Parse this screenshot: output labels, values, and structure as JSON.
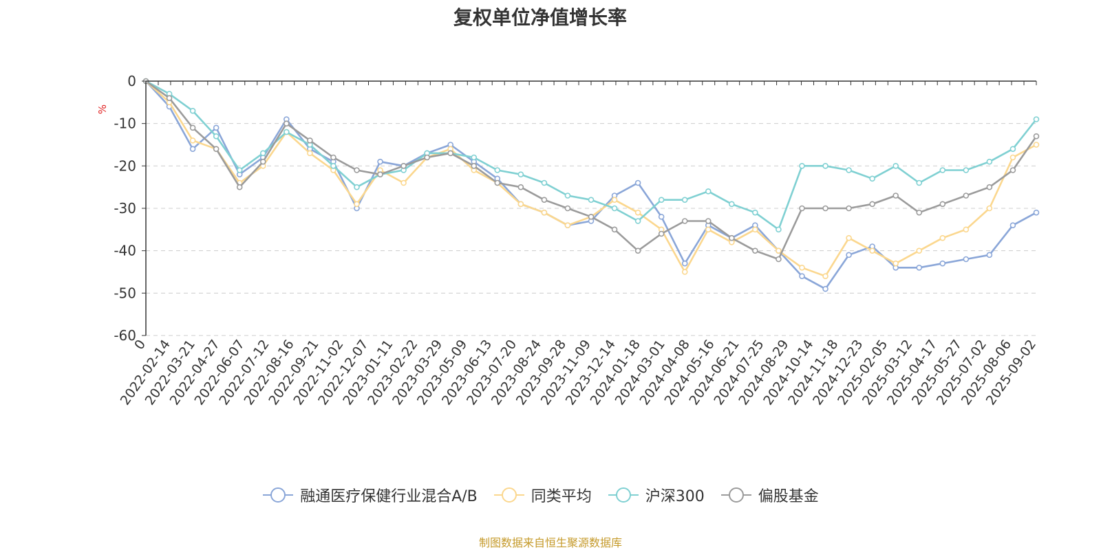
{
  "chart_data": {
    "type": "line",
    "title": "复权单位净值增长率",
    "ylabel": "%",
    "ylim": [
      -60,
      0
    ],
    "yticks": [
      "0",
      "-10",
      "-20",
      "-30",
      "-40",
      "-50",
      "-60"
    ],
    "grid": true,
    "legend_position": "bottom",
    "x_tick_labels": [
      "0",
      "2022-02-14",
      "2022-03-21",
      "2022-04-27",
      "2022-06-07",
      "2022-07-12",
      "2022-08-16",
      "2022-09-21",
      "2022-11-02",
      "2022-12-07",
      "2023-01-11",
      "2023-02-22",
      "2023-03-29",
      "2023-05-09",
      "2023-06-13",
      "2023-07-20",
      "2023-08-24",
      "2023-09-28",
      "2023-11-09",
      "2023-12-14",
      "2024-01-18",
      "2024-03-01",
      "2024-04-08",
      "2024-05-16",
      "2024-06-21",
      "2024-07-25",
      "2024-08-29",
      "2024-10-14",
      "2024-11-18",
      "2024-12-23",
      "2025-02-05",
      "2025-03-12",
      "2025-04-17",
      "2025-05-27",
      "2025-07-02",
      "2025-08-06",
      "2025-09-02"
    ],
    "series": [
      {
        "name": "融通医疗保健行业混合A/B",
        "color": "#8aa6d8",
        "values": [
          0,
          -6,
          -16,
          -11,
          -22,
          -18,
          -9,
          -16,
          -19,
          -30,
          -19,
          -20,
          -17,
          -15,
          -19,
          -23,
          -29,
          -31,
          -34,
          -33,
          -27,
          -24,
          -32,
          -43,
          -34,
          -37,
          -34,
          -40,
          -46,
          -49,
          -41,
          -39,
          -44,
          -44,
          -43,
          -42,
          -41,
          -34,
          -31
        ]
      },
      {
        "name": "同类平均",
        "color": "#fbd78e",
        "values": [
          0,
          -5,
          -14,
          -16,
          -24,
          -20,
          -12,
          -17,
          -21,
          -29,
          -21,
          -24,
          -18,
          -16,
          -21,
          -24,
          -29,
          -31,
          -34,
          -32,
          -28,
          -31,
          -35,
          -45,
          -35,
          -38,
          -35,
          -40,
          -44,
          -46,
          -37,
          -40,
          -43,
          -40,
          -37,
          -35,
          -30,
          -18,
          -15
        ]
      },
      {
        "name": "沪深300",
        "color": "#7fd0d2",
        "values": [
          0,
          -3,
          -7,
          -13,
          -21,
          -17,
          -12,
          -15,
          -20,
          -25,
          -22,
          -21,
          -17,
          -17,
          -18,
          -21,
          -22,
          -24,
          -27,
          -28,
          -30,
          -33,
          -28,
          -28,
          -26,
          -29,
          -31,
          -35,
          -20,
          -20,
          -21,
          -23,
          -20,
          -24,
          -21,
          -21,
          -19,
          -16,
          -9
        ]
      },
      {
        "name": "偏股基金",
        "color": "#9b9b9b",
        "values": [
          0,
          -4,
          -11,
          -16,
          -25,
          -19,
          -10,
          -14,
          -18,
          -21,
          -22,
          -20,
          -18,
          -17,
          -20,
          -24,
          -25,
          -28,
          -30,
          -32,
          -35,
          -40,
          -36,
          -33,
          -33,
          -37,
          -40,
          -42,
          -30,
          -30,
          -30,
          -29,
          -27,
          -31,
          -29,
          -27,
          -25,
          -21,
          -13
        ]
      }
    ]
  },
  "legend": {
    "items": [
      "融通医疗保健行业混合A/B",
      "同类平均",
      "沪深300",
      "偏股基金"
    ]
  },
  "source_note": "制图数据来自恒生聚源数据库",
  "colors": {
    "axis": "#333333",
    "grid": "#cccccc",
    "title": "#333333",
    "unit": "#e02020",
    "source": "#c59a2a"
  }
}
